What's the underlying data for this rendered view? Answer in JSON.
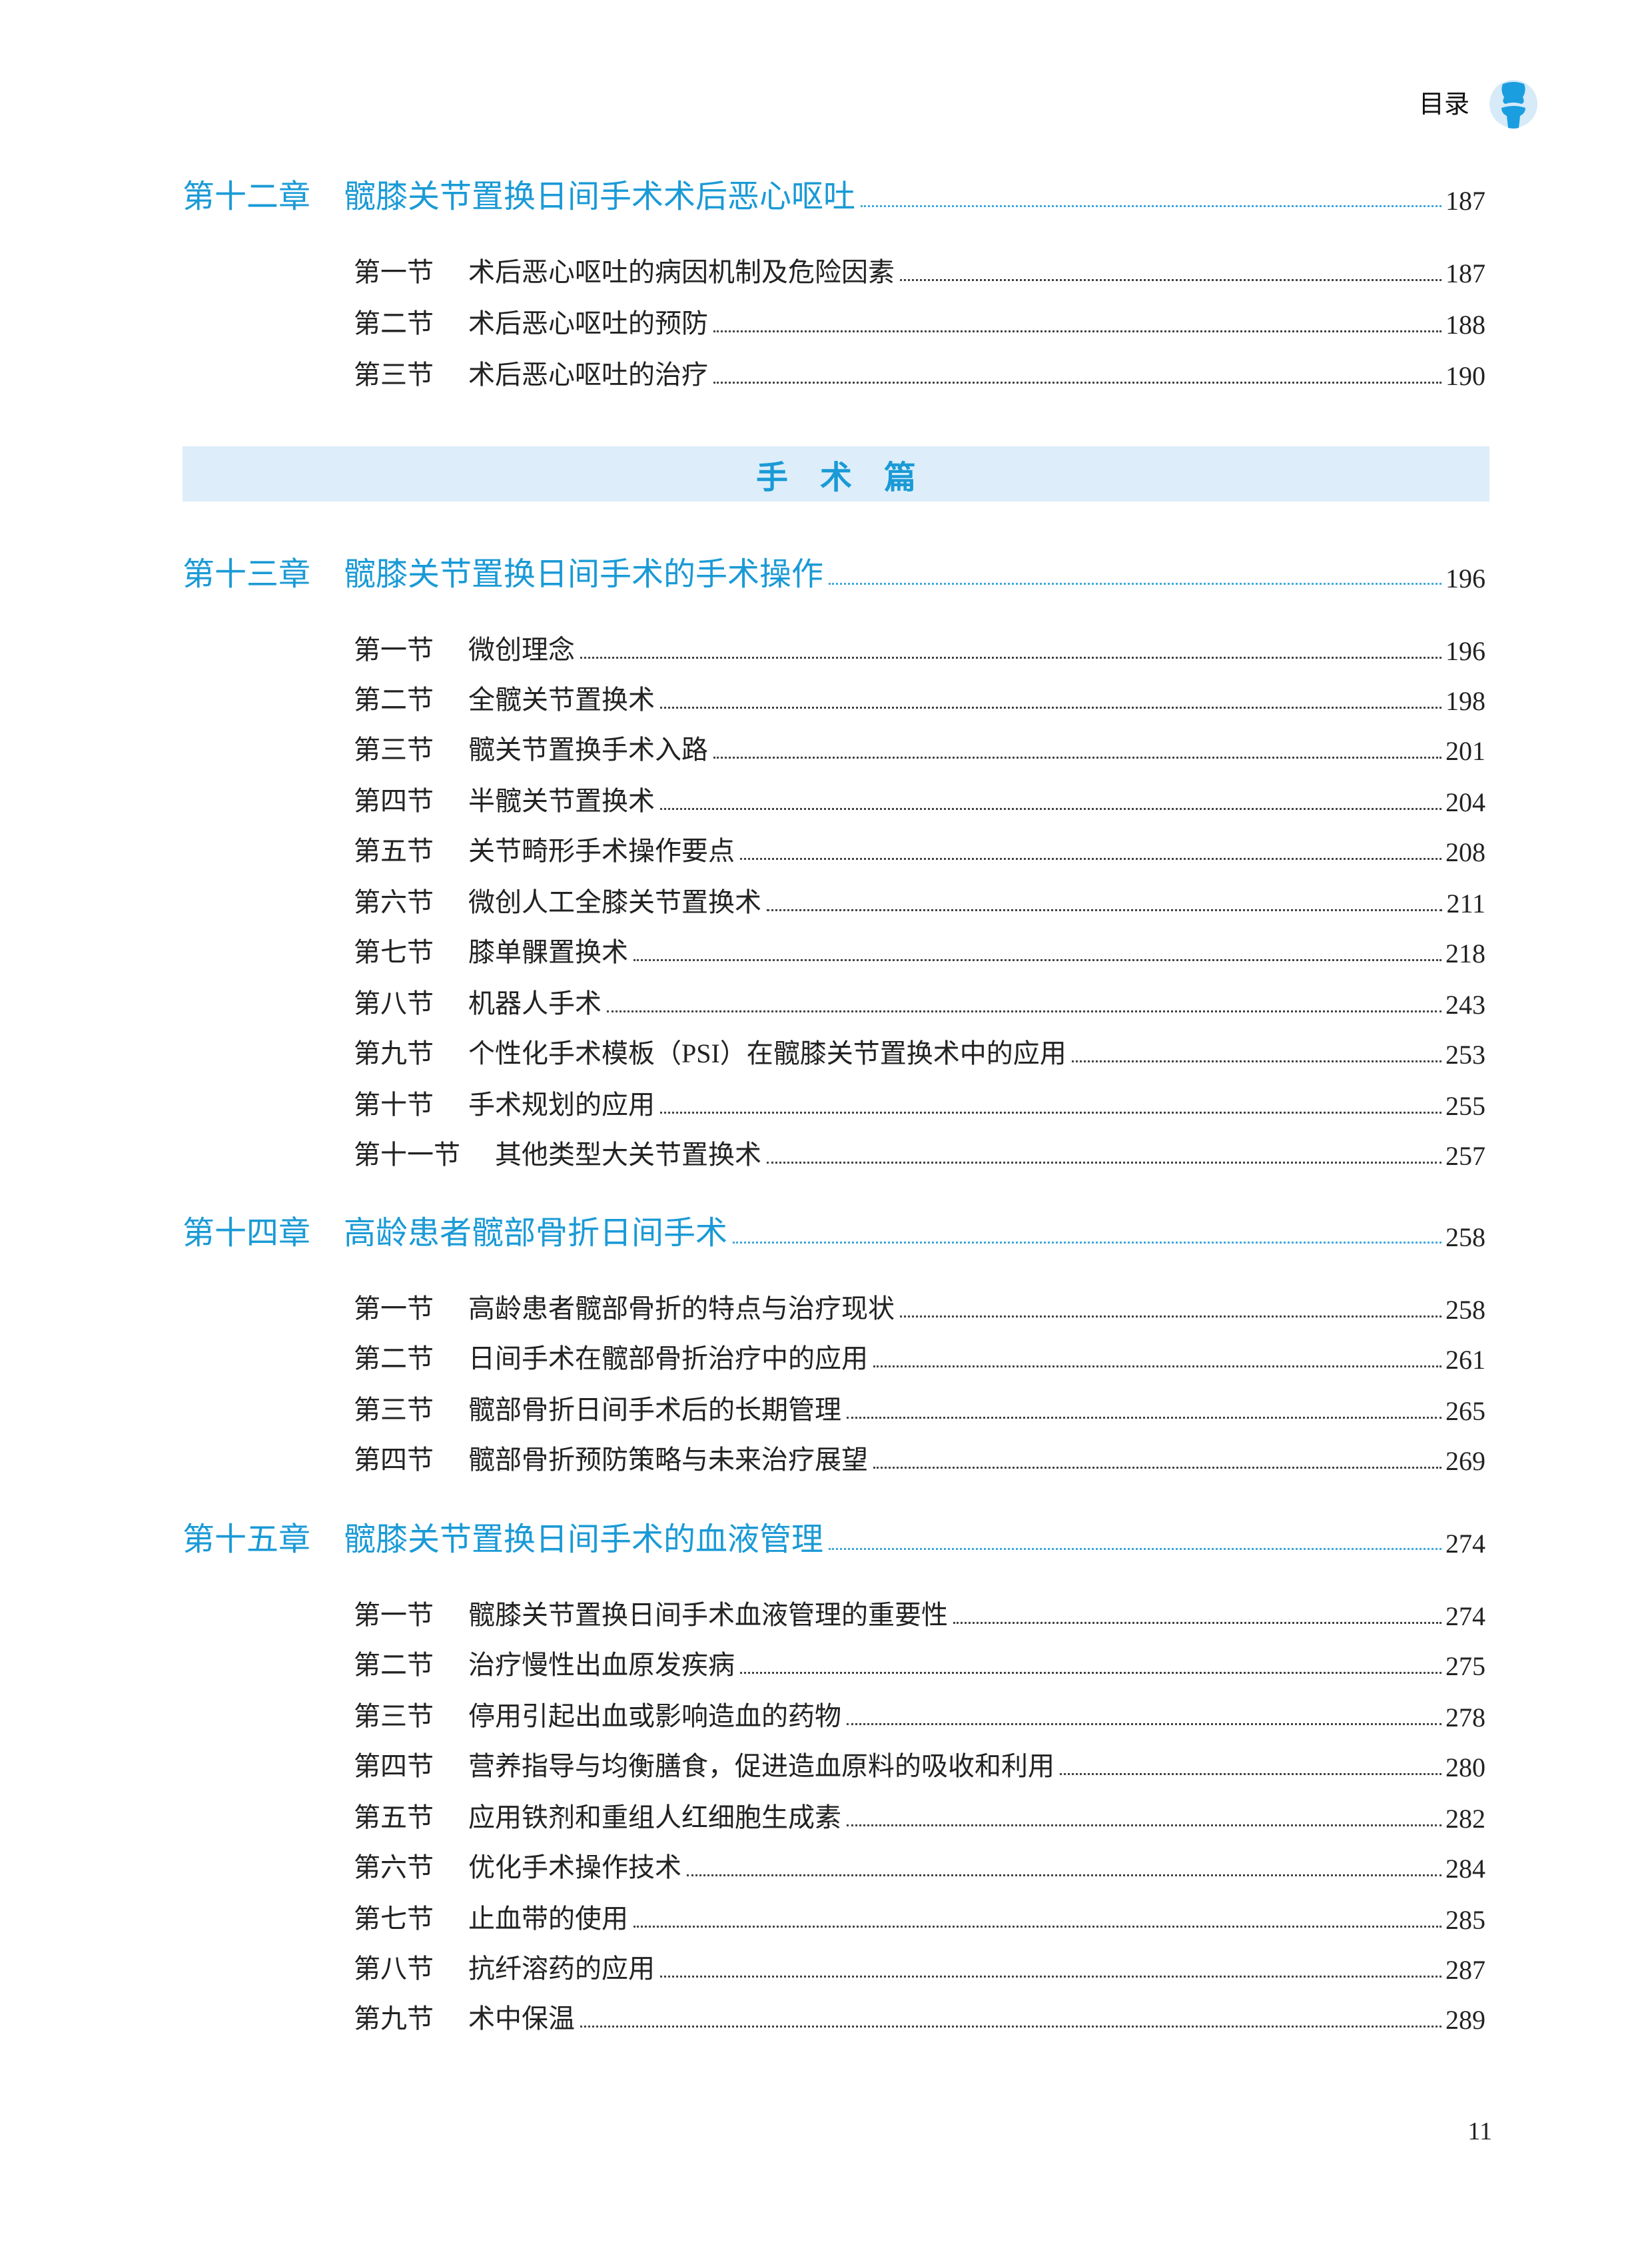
{
  "header": {
    "title": "目录",
    "logo_icon": "knee-joint-icon",
    "accent_color": "#1a9ad6"
  },
  "entries": [
    {
      "type": "chapter",
      "label": "第十二章",
      "title": "髋膝关节置换日间手术术后恶心呕吐",
      "page": "187"
    },
    {
      "type": "section",
      "label": "第一节",
      "title": "术后恶心呕吐的病因机制及危险因素",
      "page": "187"
    },
    {
      "type": "section",
      "label": "第二节",
      "title": "术后恶心呕吐的预防",
      "page": "188"
    },
    {
      "type": "section",
      "label": "第三节",
      "title": "术后恶心呕吐的治疗",
      "page": "190"
    },
    {
      "type": "part",
      "title": "手术篇"
    },
    {
      "type": "chapter",
      "label": "第十三章",
      "title": "髋膝关节置换日间手术的手术操作",
      "page": "196"
    },
    {
      "type": "section",
      "label": "第一节",
      "title": "微创理念",
      "page": "196"
    },
    {
      "type": "section",
      "label": "第二节",
      "title": "全髋关节置换术",
      "page": "198"
    },
    {
      "type": "section",
      "label": "第三节",
      "title": "髋关节置换手术入路",
      "page": "201"
    },
    {
      "type": "section",
      "label": "第四节",
      "title": "半髋关节置换术",
      "page": "204"
    },
    {
      "type": "section",
      "label": "第五节",
      "title": "关节畸形手术操作要点",
      "page": "208"
    },
    {
      "type": "section",
      "label": "第六节",
      "title": "微创人工全膝关节置换术",
      "page": "211"
    },
    {
      "type": "section",
      "label": "第七节",
      "title": "膝单髁置换术",
      "page": "218"
    },
    {
      "type": "section",
      "label": "第八节",
      "title": "机器人手术",
      "page": "243"
    },
    {
      "type": "section",
      "label": "第九节",
      "title": "个性化手术模板（PSI）在髋膝关节置换术中的应用",
      "page": "253"
    },
    {
      "type": "section",
      "label": "第十节",
      "title": "手术规划的应用",
      "page": "255"
    },
    {
      "type": "section",
      "label": "第十一节",
      "title": "其他类型大关节置换术",
      "page": "257"
    },
    {
      "type": "chapter",
      "label": "第十四章",
      "title": "高龄患者髋部骨折日间手术",
      "page": "258"
    },
    {
      "type": "section",
      "label": "第一节",
      "title": "高龄患者髋部骨折的特点与治疗现状",
      "page": "258"
    },
    {
      "type": "section",
      "label": "第二节",
      "title": "日间手术在髋部骨折治疗中的应用",
      "page": "261"
    },
    {
      "type": "section",
      "label": "第三节",
      "title": "髋部骨折日间手术后的长期管理",
      "page": "265"
    },
    {
      "type": "section",
      "label": "第四节",
      "title": "髋部骨折预防策略与未来治疗展望",
      "page": "269"
    },
    {
      "type": "chapter",
      "label": "第十五章",
      "title": "髋膝关节置换日间手术的血液管理",
      "page": "274"
    },
    {
      "type": "section",
      "label": "第一节",
      "title": "髋膝关节置换日间手术血液管理的重要性",
      "page": "274"
    },
    {
      "type": "section",
      "label": "第二节",
      "title": "治疗慢性出血原发疾病",
      "page": "275"
    },
    {
      "type": "section",
      "label": "第三节",
      "title": "停用引起出血或影响造血的药物",
      "page": "278"
    },
    {
      "type": "section",
      "label": "第四节",
      "title": "营养指导与均衡膳食，促进造血原料的吸收和利用",
      "page": "280"
    },
    {
      "type": "section",
      "label": "第五节",
      "title": "应用铁剂和重组人红细胞生成素",
      "page": "282"
    },
    {
      "type": "section",
      "label": "第六节",
      "title": "优化手术操作技术",
      "page": "284"
    },
    {
      "type": "section",
      "label": "第七节",
      "title": "止血带的使用",
      "page": "285"
    },
    {
      "type": "section",
      "label": "第八节",
      "title": "抗纤溶药的应用",
      "page": "287"
    },
    {
      "type": "section",
      "label": "第九节",
      "title": "术中保温",
      "page": "289"
    }
  ],
  "footer": {
    "page_number": "11"
  }
}
